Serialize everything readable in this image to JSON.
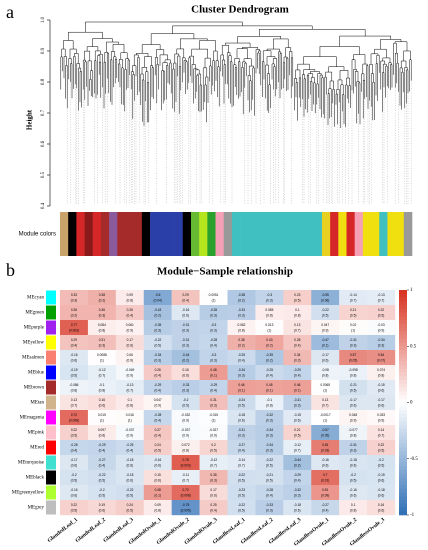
{
  "chart_data": [
    {
      "type": "dendrogram",
      "panel_label": "a",
      "title": "Cluster Dendrogram",
      "ylabel": "Height",
      "ylim": [
        0.4,
        1
      ],
      "yticks": [
        0.4,
        0.5,
        0.6,
        0.7,
        0.8,
        0.9,
        {
          "value": 1,
          "label": "1.0"
        }
      ],
      "module_colors_label": "Module colors",
      "module_colors": [
        "#c8a36a",
        "#000000",
        "#d62728",
        "#8b1a1a",
        "#d62728",
        "#a52a2a",
        "#8b5a9c",
        "#a52a2a",
        "#a52a2a",
        "#a52a2a",
        "#000000",
        "#2a3fa8",
        "#2a3fa8",
        "#2a3fa8",
        "#2a3fa8",
        "#000000",
        "#66bb33",
        "#b5e61d",
        "#2ca02c",
        "#f5a0b5",
        "#999999",
        "#40c0c0",
        "#40c0c0",
        "#40c0c0",
        "#40c0c0",
        "#40c0c0",
        "#40c0c0",
        "#40c0c0",
        "#40c0c0",
        "#40c0c0",
        "#40c0c0",
        "#40c0c0",
        "#e8d020",
        "#d62728",
        "#f0e010",
        "#d62728",
        "#f5a0b5",
        "#f0e010",
        "#f0e010",
        "#40c0c0",
        "#f0e010",
        "#f0e010",
        "#999999"
      ]
    },
    {
      "type": "heatmap",
      "panel_label": "b",
      "title": "Module−Sample relationship",
      "rows": [
        "MEcyan",
        "MEgreen",
        "MEpurple",
        "MEyellow",
        "MEsalmon",
        "MEblue",
        "MEbrown",
        "MEtan",
        "MEmagenta",
        "MEpink",
        "MEred",
        "MEturquoise",
        "MEblack",
        "MEgreenyellow",
        "MEgrey"
      ],
      "row_colors": [
        "#00ffff",
        "#00a000",
        "#a020f0",
        "#ffff00",
        "#fa8072",
        "#0000ff",
        "#a52a2a",
        "#d2b48c",
        "#ff00ff",
        "#ffc0cb",
        "#ff0000",
        "#40e0d0",
        "#000000",
        "#adff2f",
        "#bebebe"
      ],
      "columns": [
        "GlandedLeaf_1",
        "GlandedLeaf_2",
        "GlandedLeaf_3",
        "GlandedOvule_1",
        "GlandedOvule_2",
        "GlandedOvule_3",
        "GlandlessLeaf_1",
        "GlandlessLeaf_2",
        "GlandlessLeaf_3",
        "GlandlessOvule_1",
        "GlandlessOvule_2",
        "GlandlessOvule_3"
      ],
      "values": [
        [
          0.33,
          0.38,
          0.09,
          -0.6,
          0.29,
          0.0051,
          -0.38,
          -0.3,
          0.23,
          -0.55,
          -0.14,
          -0.13
        ],
        [
          0.36,
          0.36,
          0.26,
          -0.43,
          -0.16,
          -0.35,
          -0.33,
          0.085,
          0.1,
          -0.22,
          0.21,
          0.22
        ],
        [
          0.77,
          0.084,
          0.061,
          -0.35,
          -0.31,
          -0.3,
          0.062,
          0.013,
          0.13,
          0.047,
          0.02,
          -0.03
        ],
        [
          0.29,
          0.31,
          0.17,
          -0.22,
          -0.31,
          -0.28,
          0.38,
          0.43,
          0.28,
          -0.47,
          -0.31,
          -0.34
        ],
        [
          -0.16,
          0.0088,
          0.06,
          -0.34,
          -0.44,
          -0.3,
          -0.25,
          -0.39,
          0.34,
          -0.17,
          0.57,
          0.54
        ],
        [
          -0.19,
          -0.12,
          -0.049,
          0.26,
          0.16,
          0.48,
          -0.34,
          -0.25,
          -0.29,
          -0.08,
          -0.098,
          0.074
        ],
        [
          -0.086,
          -0.1,
          -0.13,
          -0.29,
          -0.33,
          -0.29,
          0.46,
          0.45,
          0.46,
          0.0065,
          -0.21,
          -0.15
        ],
        [
          0.13,
          0.16,
          0.1,
          0.047,
          -0.2,
          0.31,
          -0.24,
          -0.1,
          -0.31,
          0.13,
          -0.17,
          -0.17
        ],
        [
          0.72,
          0.015,
          0.016,
          -0.28,
          -0.032,
          -0.015,
          -0.18,
          -0.32,
          -0.15,
          -0.0017,
          0.048,
          0.033
        ],
        [
          0.22,
          0.097,
          -0.037,
          0.27,
          -0.037,
          -0.027,
          -0.31,
          -0.34,
          0.21,
          -0.57,
          -0.077,
          0.14
        ],
        [
          -0.28,
          -0.29,
          -0.25,
          0.24,
          0.072,
          0.2,
          -0.27,
          -0.34,
          -0.12,
          0.63,
          -0.31,
          0.22
        ],
        [
          -0.17,
          -0.27,
          -0.18,
          -0.16,
          0.78,
          -0.12,
          -0.14,
          -0.22,
          -0.44,
          -0.16,
          -0.18,
          -0.2
        ],
        [
          -0.2,
          -0.22,
          -0.18,
          0.15,
          -0.11,
          0.35,
          -0.22,
          -0.21,
          -0.29,
          0.7,
          -0.2,
          -0.19
        ],
        [
          -0.16,
          -0.2,
          -0.22,
          0.48,
          0.72,
          0.17,
          -0.23,
          -0.28,
          -0.32,
          0.51,
          -0.16,
          -0.18
        ],
        [
          0.22,
          0.19,
          0.24,
          0.09,
          -0.75,
          0.25,
          -0.22,
          -0.33,
          -0.18,
          -0.27,
          0.1,
          0.16
        ]
      ],
      "pvalue_labels": [
        [
          "(0.3)",
          "(0.2)",
          "(0.8)",
          "(0.04)",
          "(0.4)",
          "(1)",
          "(0.2)",
          "(0.3)",
          "(0.5)",
          "(0.06)",
          "(0.7)",
          "(0.7)"
        ],
        [
          "(0.2)",
          "(0.3)",
          "(0.4)",
          "(0.2)",
          "(0.6)",
          "(0.3)",
          "(0.3)",
          "(0.8)",
          "(0.8)",
          "(0.5)",
          "(0.5)",
          "(0.5)"
        ],
        [
          "(0.003)",
          "(0.8)",
          "(0.9)",
          "(0.3)",
          "(0.3)",
          "(0.3)",
          "(0.8)",
          "(1)",
          "(0.7)",
          "(0.9)",
          "(1)",
          "(0.9)"
        ],
        [
          "(0.4)",
          "(0.3)",
          "(0.6)",
          "(0.5)",
          "(0.3)",
          "(0.4)",
          "(0.2)",
          "(0.2)",
          "(0.4)",
          "(0.1)",
          "(0.3)",
          "(0.3)"
        ],
        [
          "(0.6)",
          "(1)",
          "(0.9)",
          "(0.3)",
          "(0.2)",
          "(0.3)",
          "(0.4)",
          "(0.2)",
          "(0.3)",
          "(0.6)",
          "(0.05)",
          "(0.07)"
        ],
        [
          "(0.5)",
          "(0.7)",
          "(0.9)",
          "(0.4)",
          "(0.6)",
          "(0.1)",
          "(0.3)",
          "(0.4)",
          "(0.4)",
          "(0.8)",
          "(0.8)",
          "(0.8)"
        ],
        [
          "(0.8)",
          "(0.8)",
          "(0.7)",
          "(0.4)",
          "(0.3)",
          "(0.4)",
          "(0.1)",
          "(0.1)",
          "(0.1)",
          "(1)",
          "(0.5)",
          "(0.6)"
        ],
        [
          "(0.7)",
          "(0.6)",
          "(0.8)",
          "(0.9)",
          "(0.5)",
          "(0.3)",
          "(0.5)",
          "(0.8)",
          "(0.3)",
          "(0.7)",
          "(0.6)",
          "(0.6)"
        ],
        [
          "(0.008)",
          "(1)",
          "(1)",
          "(0.4)",
          "(0.9)",
          "(1)",
          "(0.6)",
          "(0.3)",
          "(0.6)",
          "(1)",
          "(0.9)",
          "(0.9)"
        ],
        [
          "(0.5)",
          "(0.8)",
          "(0.9)",
          "(0.4)",
          "(0.9)",
          "(0.9)",
          "(0.3)",
          "(0.3)",
          "(0.5)",
          "(0.05)",
          "(0.8)",
          "(0.7)"
        ],
        [
          "(0.4)",
          "(0.4)",
          "(0.4)",
          "(0.5)",
          "(0.8)",
          "(0.5)",
          "(0.4)",
          "(0.3)",
          "(0.7)",
          "(0.03)",
          "(0.3)",
          "(0.5)"
        ],
        [
          "(0.6)",
          "(0.4)",
          "(0.6)",
          "(0.6)",
          "(0.003)",
          "(0.7)",
          "(0.7)",
          "(0.5)",
          "(0.2)",
          "(0.6)",
          "(0.6)",
          "(0.5)"
        ],
        [
          "(0.5)",
          "(0.5)",
          "(0.6)",
          "(0.6)",
          "(0.7)",
          "(0.3)",
          "(0.5)",
          "(0.5)",
          "(0.4)",
          "(0.01)",
          "(0.5)",
          "(0.6)"
        ],
        [
          "(0.6)",
          "(0.5)",
          "(0.5)",
          "(0.1)",
          "(0.008)",
          "(0.6)",
          "(0.5)",
          "(0.4)",
          "(0.3)",
          "(0.09)",
          "(0.6)",
          "(0.6)"
        ],
        [
          "(0.5)",
          "(0.6)",
          "(0.5)",
          "(0.8)",
          "(0.005)",
          "(0.4)",
          "(0.5)",
          "(0.3)",
          "(0.6)",
          "(0.4)",
          "(0.8)",
          "(0.6)"
        ]
      ],
      "zlim": [
        -1,
        1
      ],
      "colorbar_ticks": [
        -1,
        -0.5,
        0,
        0.5,
        1
      ],
      "low_color": "#2f6fb5",
      "mid_color": "#ffffff",
      "high_color": "#d7301f"
    }
  ]
}
